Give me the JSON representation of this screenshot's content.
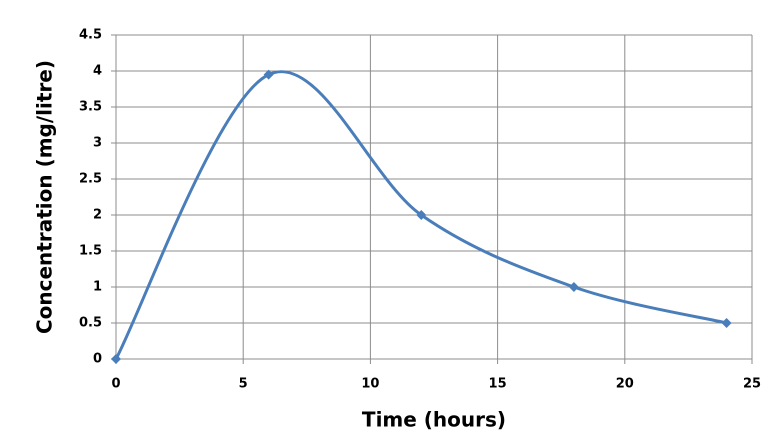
{
  "chart_data": {
    "type": "line",
    "x_label": "Time (hours)",
    "y_label": "Concentration (mg/litre)",
    "x": [
      0,
      6,
      12,
      18,
      24
    ],
    "series": [
      {
        "color": "#4a7ebb",
        "values": [
          0,
          3.95,
          2,
          1,
          0.5
        ]
      }
    ],
    "xlim": [
      0,
      25
    ],
    "xticks": [
      0,
      5,
      10,
      15,
      20,
      25
    ],
    "ylim": [
      0,
      4.5
    ],
    "yticks": [
      0,
      0.5,
      1,
      1.5,
      2,
      2.5,
      3,
      3.5,
      4,
      4.5
    ],
    "grid": true,
    "smooth": true
  }
}
